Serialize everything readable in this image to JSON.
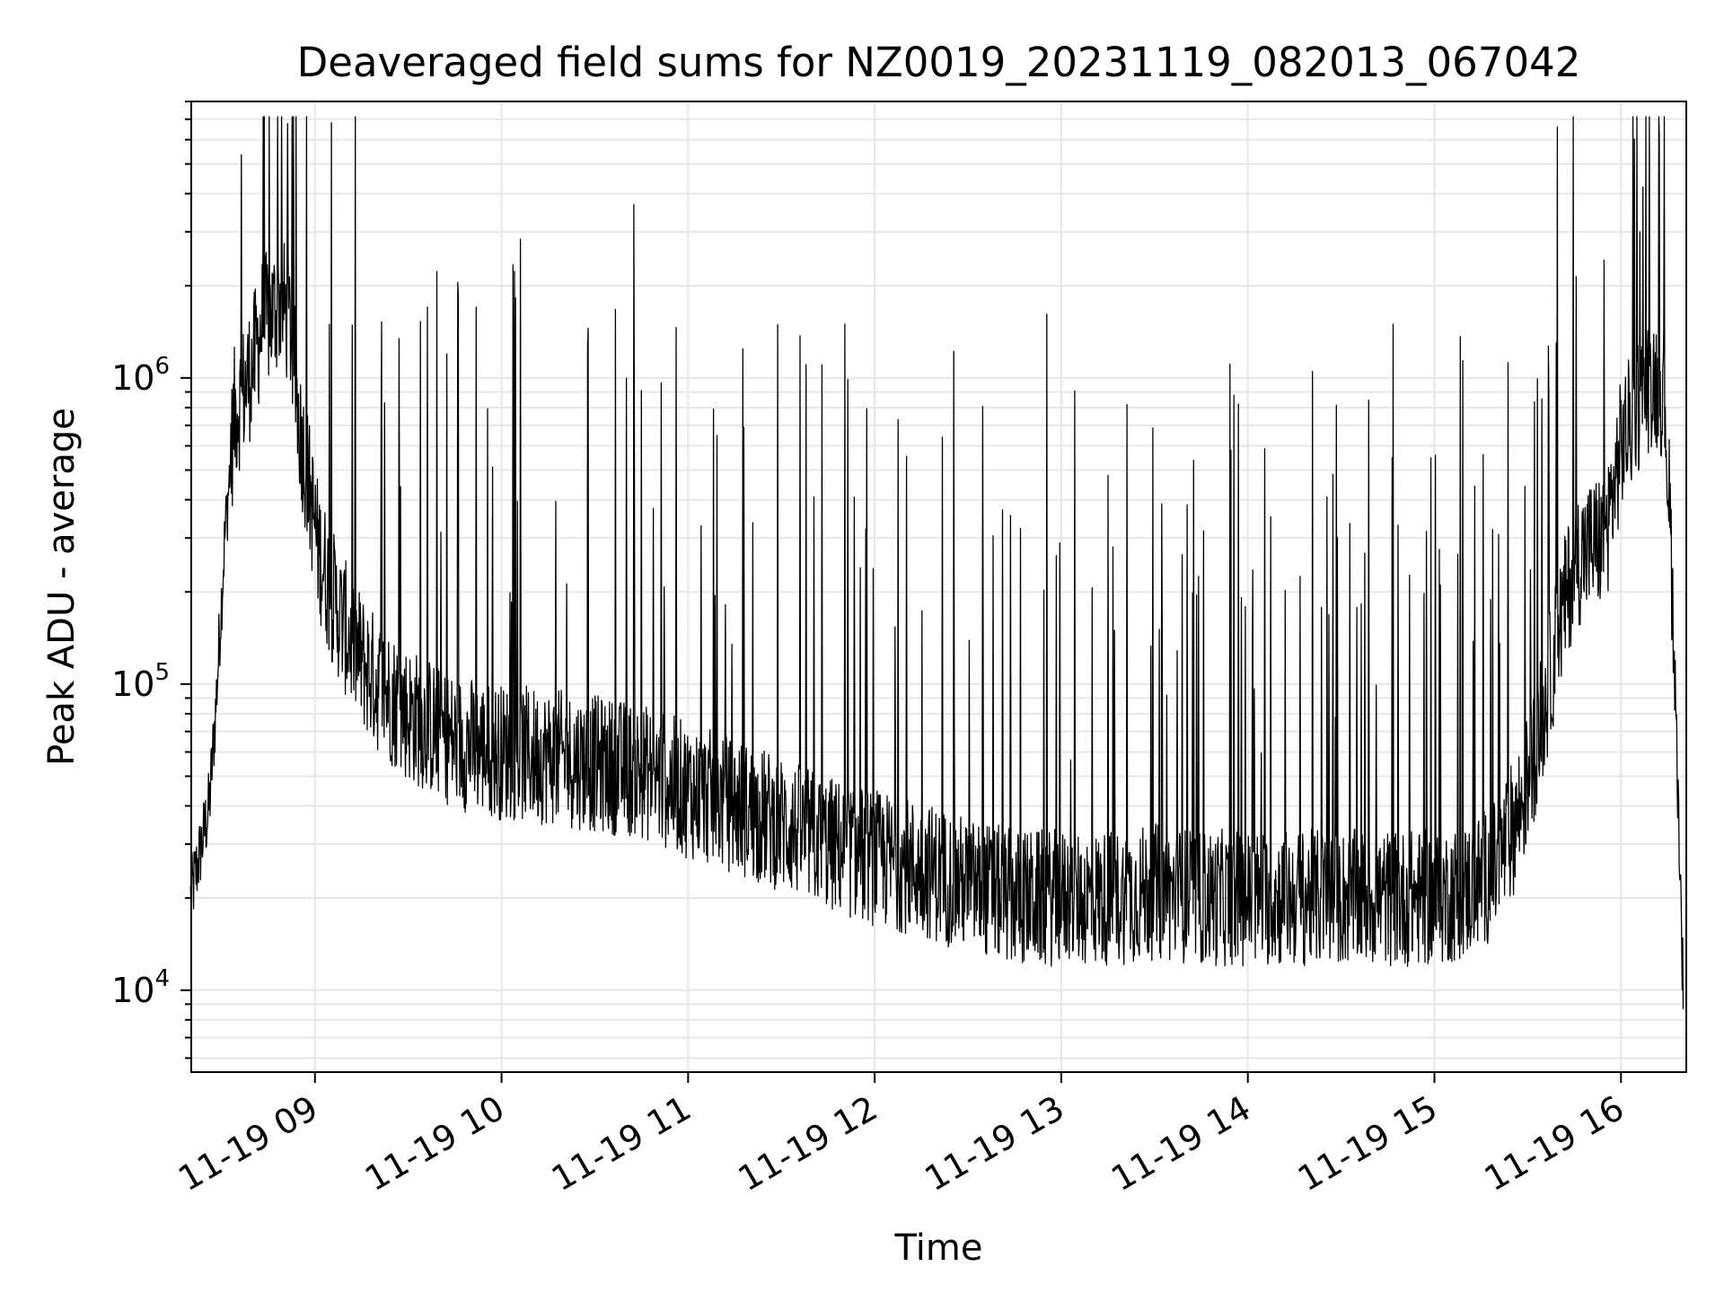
{
  "chart_data": {
    "type": "line",
    "title": "Deaveraged field sums for NZ0019_20231119_082013_067042",
    "xlabel": "Time",
    "ylabel": "Peak ADU - average",
    "yscale": "log",
    "grid": true,
    "line_color": "#000000",
    "grid_color": "#e6e6e6",
    "xlim": [
      "11-19 08:20:13",
      "11-19 16:21:00"
    ],
    "ylim": [
      5400,
      8000000
    ],
    "x_ticks": [
      "11-19 09",
      "11-19 10",
      "11-19 11",
      "11-19 12",
      "11-19 13",
      "11-19 14",
      "11-19 15",
      "11-19 16"
    ],
    "y_ticks": [
      {
        "base": "10",
        "exp": "4",
        "value": 10000
      },
      {
        "base": "10",
        "exp": "5",
        "value": 100000
      },
      {
        "base": "10",
        "exp": "6",
        "value": 1000000
      }
    ],
    "series": [
      {
        "points": [
          {
            "t": "08:20",
            "v": 20000
          },
          {
            "t": "08:23",
            "v": 28000
          },
          {
            "t": "08:26",
            "v": 40000
          },
          {
            "t": "08:28",
            "v": 80000
          },
          {
            "t": "08:31",
            "v": 300000
          },
          {
            "t": "08:34",
            "v": 750000
          },
          {
            "t": "08:37",
            "v": 900000
          },
          {
            "t": "08:40",
            "v": 1100000
          },
          {
            "t": "08:43",
            "v": 1500000
          },
          {
            "t": "08:46",
            "v": 1600000
          },
          {
            "t": "08:49",
            "v": 1800000
          },
          {
            "t": "08:52",
            "v": 1500000
          },
          {
            "t": "08:55",
            "v": 700000
          },
          {
            "t": "08:58",
            "v": 450000
          },
          {
            "t": "09:01",
            "v": 280000
          },
          {
            "t": "09:05",
            "v": 200000
          },
          {
            "t": "09:10",
            "v": 150000
          },
          {
            "t": "09:15",
            "v": 120000
          },
          {
            "t": "09:20",
            "v": 100000
          },
          {
            "t": "09:30",
            "v": 80000
          },
          {
            "t": "09:45",
            "v": 65000
          },
          {
            "t": "10:00",
            "v": 60000
          },
          {
            "t": "10:15",
            "v": 58000
          },
          {
            "t": "10:30",
            "v": 55000
          },
          {
            "t": "10:45",
            "v": 52000
          },
          {
            "t": "11:00",
            "v": 45000
          },
          {
            "t": "11:15",
            "v": 40000
          },
          {
            "t": "11:30",
            "v": 35000
          },
          {
            "t": "11:45",
            "v": 30000
          },
          {
            "t": "12:00",
            "v": 27000
          },
          {
            "t": "12:15",
            "v": 25000
          },
          {
            "t": "12:30",
            "v": 22000
          },
          {
            "t": "12:45",
            "v": 20000
          },
          {
            "t": "13:00",
            "v": 20000
          },
          {
            "t": "13:15",
            "v": 20000
          },
          {
            "t": "13:30",
            "v": 21000
          },
          {
            "t": "13:45",
            "v": 20000
          },
          {
            "t": "14:00",
            "v": 20000
          },
          {
            "t": "14:15",
            "v": 20000
          },
          {
            "t": "14:30",
            "v": 20000
          },
          {
            "t": "14:45",
            "v": 20000
          },
          {
            "t": "15:00",
            "v": 20000
          },
          {
            "t": "15:10",
            "v": 21000
          },
          {
            "t": "15:20",
            "v": 25000
          },
          {
            "t": "15:28",
            "v": 40000
          },
          {
            "t": "15:35",
            "v": 80000
          },
          {
            "t": "15:40",
            "v": 150000
          },
          {
            "t": "15:45",
            "v": 250000
          },
          {
            "t": "15:50",
            "v": 280000
          },
          {
            "t": "15:55",
            "v": 300000
          },
          {
            "t": "16:00",
            "v": 600000
          },
          {
            "t": "16:05",
            "v": 800000
          },
          {
            "t": "16:10",
            "v": 1000000
          },
          {
            "t": "16:14",
            "v": 900000
          },
          {
            "t": "16:16",
            "v": 300000
          },
          {
            "t": "16:18",
            "v": 60000
          },
          {
            "t": "16:20",
            "v": 10000
          }
        ]
      }
    ]
  }
}
